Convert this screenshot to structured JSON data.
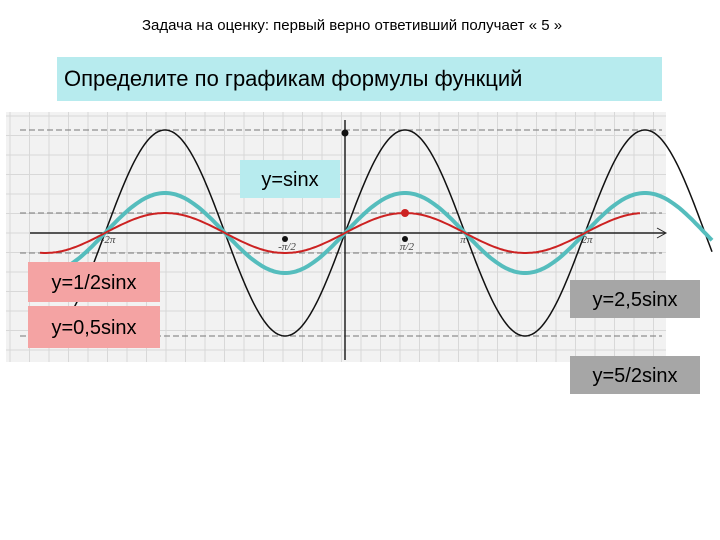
{
  "header": {
    "title": "Задача на оценку: первый верно ответивший получает « 5 »"
  },
  "task": "Определите по графикам формулы функций",
  "axis_labels": [
    "-2π",
    "-π/2",
    "π/2",
    "π",
    "2π"
  ],
  "answers": [
    "y=sinx",
    "y=1/2sinx",
    "y=0,5sinx",
    "y=2,5sinx",
    "y=5/2sinx"
  ]
}
